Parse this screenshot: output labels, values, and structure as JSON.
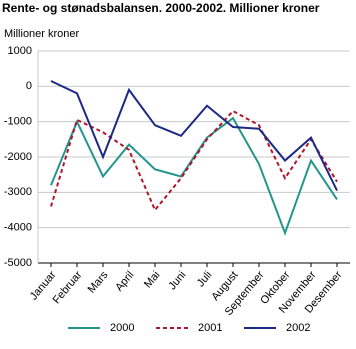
{
  "chart_data": {
    "type": "line",
    "title": "Rente- og stønadsbalansen. 2000-2002. Millioner kroner",
    "y_label": "Millioner kroner",
    "categories": [
      "Januar",
      "Februar",
      "Mars",
      "April",
      "Mai",
      "Juni",
      "Juli",
      "August",
      "September",
      "Oktober",
      "November",
      "Desember"
    ],
    "series": [
      {
        "name": "2000",
        "color": "#22968c",
        "dashed": false,
        "values": [
          -2800,
          -1000,
          -2550,
          -1650,
          -2350,
          -2550,
          -1450,
          -900,
          -2200,
          -4150,
          -2100,
          -3200
        ]
      },
      {
        "name": "2001",
        "color": "#b0162a",
        "dashed": true,
        "values": [
          -3400,
          -950,
          -1300,
          -1800,
          -3500,
          -2600,
          -1500,
          -700,
          -1100,
          -2600,
          -1500,
          -2700
        ]
      },
      {
        "name": "2002",
        "color": "#1c2a86",
        "dashed": false,
        "values": [
          150,
          -200,
          -2000,
          -100,
          -1100,
          -1400,
          -550,
          -1150,
          -1200,
          -2100,
          -1450,
          -2950
        ]
      }
    ],
    "ylim": [
      -5000,
      1000
    ],
    "yticks": [
      1000,
      0,
      -1000,
      -2000,
      -3000,
      -4000,
      -5000
    ],
    "grid": true
  }
}
